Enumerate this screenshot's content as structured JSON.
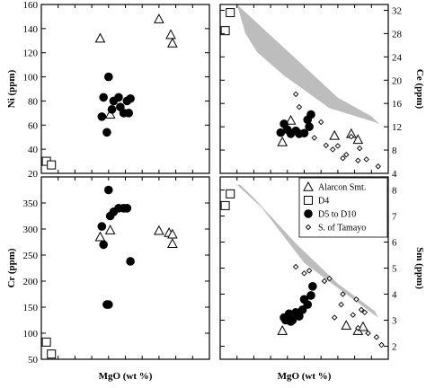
{
  "chart_data": [
    {
      "panel": "ni",
      "type": "scatter",
      "ylabel": "Ni (ppm)",
      "xlabel": "",
      "xlim": [
        0,
        10
      ],
      "ylim": [
        20,
        160
      ],
      "yticks": [
        20,
        40,
        60,
        80,
        100,
        120,
        140,
        160
      ],
      "y_axis_side": "left",
      "series": [
        {
          "marker": "triangle",
          "points": [
            [
              3.5,
              132
            ],
            [
              7.0,
              148
            ],
            [
              7.7,
              135
            ],
            [
              7.8,
              128
            ],
            [
              4.1,
              69
            ]
          ]
        },
        {
          "marker": "square",
          "points": [
            [
              0.3,
              30
            ],
            [
              0.6,
              27
            ]
          ]
        },
        {
          "marker": "circle",
          "points": [
            [
              3.6,
              67
            ],
            [
              3.7,
              83
            ],
            [
              3.9,
              54
            ],
            [
              4.0,
              100
            ],
            [
              4.2,
              73
            ],
            [
              4.3,
              80
            ],
            [
              4.6,
              83
            ],
            [
              4.7,
              75
            ],
            [
              4.9,
              70
            ],
            [
              5.1,
              80
            ],
            [
              5.2,
              70
            ],
            [
              5.3,
              82
            ]
          ]
        }
      ]
    },
    {
      "panel": "ce",
      "type": "scatter",
      "ylabel": "Ce (ppm)",
      "xlabel": "",
      "xlim": [
        0,
        10
      ],
      "ylim": [
        4,
        33
      ],
      "yticks": [
        4,
        8,
        12,
        16,
        20,
        24,
        28,
        32
      ],
      "y_axis_side": "right",
      "shaded_field": [
        [
          1.0,
          33
        ],
        [
          4.2,
          24.5
        ],
        [
          7.0,
          17
        ],
        [
          9.0,
          13.8
        ],
        [
          9.5,
          12.4
        ],
        [
          9.2,
          12.8
        ],
        [
          6.5,
          15.2
        ],
        [
          3.8,
          20.8
        ],
        [
          2.2,
          24.8
        ],
        [
          1.5,
          28
        ]
      ],
      "series": [
        {
          "marker": "triangle",
          "points": [
            [
              4.2,
              13.1
            ],
            [
              6.8,
              10.5
            ],
            [
              7.8,
              10.8
            ],
            [
              8.2,
              9.8
            ],
            [
              3.7,
              9.4
            ]
          ]
        },
        {
          "marker": "square",
          "points": [
            [
              0.3,
              28.5
            ],
            [
              0.6,
              31.6
            ]
          ]
        },
        {
          "marker": "circle",
          "points": [
            [
              3.6,
              11.0
            ],
            [
              3.8,
              12.5
            ],
            [
              4.0,
              11.5
            ],
            [
              4.2,
              10.8
            ],
            [
              4.5,
              11.3
            ],
            [
              4.7,
              10.8
            ],
            [
              5.0,
              10.9
            ],
            [
              5.2,
              13.2
            ],
            [
              5.3,
              12.0
            ],
            [
              5.4,
              14.1
            ]
          ]
        },
        {
          "marker": "diamond",
          "points": [
            [
              4.5,
              17.6
            ],
            [
              4.7,
              15.4
            ],
            [
              5.6,
              10.1
            ],
            [
              6.0,
              12.8
            ],
            [
              6.3,
              8.8
            ],
            [
              6.7,
              8.1
            ],
            [
              7.0,
              8.7
            ],
            [
              7.3,
              6.6
            ],
            [
              7.5,
              7.2
            ],
            [
              7.8,
              10.3
            ],
            [
              8.2,
              6.2
            ],
            [
              8.3,
              8.3
            ],
            [
              8.7,
              6.4
            ],
            [
              9.4,
              5.2
            ]
          ]
        }
      ]
    },
    {
      "panel": "cr",
      "type": "scatter",
      "ylabel": "Cr (ppm)",
      "xlabel": "MgO (wt %)",
      "xlim": [
        0,
        10
      ],
      "ylim": [
        50,
        400
      ],
      "yticks": [
        50,
        100,
        150,
        200,
        250,
        300,
        350
      ],
      "y_axis_side": "left",
      "series": [
        {
          "marker": "triangle",
          "points": [
            [
              3.5,
              285
            ],
            [
              4.1,
              298
            ],
            [
              7.0,
              297
            ],
            [
              7.6,
              293
            ],
            [
              7.8,
              290
            ],
            [
              7.8,
              272
            ]
          ]
        },
        {
          "marker": "square",
          "points": [
            [
              0.3,
              83
            ],
            [
              0.6,
              60
            ]
          ]
        },
        {
          "marker": "circle",
          "points": [
            [
              3.6,
              305
            ],
            [
              3.7,
              270
            ],
            [
              4.0,
              155
            ],
            [
              4.0,
              375
            ],
            [
              4.1,
              325
            ],
            [
              4.3,
              333
            ],
            [
              4.6,
              340
            ],
            [
              4.9,
              340
            ],
            [
              5.1,
              340
            ],
            [
              5.3,
              238
            ],
            [
              3.9,
              155
            ]
          ]
        }
      ]
    },
    {
      "panel": "sm",
      "type": "scatter",
      "ylabel": "Sm (ppm)",
      "xlabel": "MgO (wt %)",
      "xlim": [
        0,
        10
      ],
      "ylim": [
        1.5,
        8.5
      ],
      "yticks": [
        2,
        3,
        4,
        5,
        6,
        7,
        8
      ],
      "y_axis_side": "right",
      "legend_position": "top-right",
      "legend": [
        {
          "marker": "triangle",
          "label": "Alarcon Smt."
        },
        {
          "marker": "square",
          "label": "D4"
        },
        {
          "marker": "circle",
          "label": "D5 to D10"
        },
        {
          "marker": "diamond",
          "label": "S. of Tamayo"
        }
      ],
      "shaded_field": [
        [
          1.0,
          8.2
        ],
        [
          2.5,
          7.3
        ],
        [
          5.0,
          5.2
        ],
        [
          7.5,
          4.0
        ],
        [
          9.4,
          3.1
        ],
        [
          9.2,
          3.35
        ],
        [
          7.0,
          4.4
        ],
        [
          4.5,
          5.95
        ],
        [
          2.0,
          7.7
        ],
        [
          1.2,
          8.2
        ]
      ],
      "series": [
        {
          "marker": "triangle",
          "points": [
            [
              3.7,
              2.6
            ],
            [
              4.2,
              3.2
            ],
            [
              7.5,
              2.8
            ],
            [
              8.2,
              2.6
            ],
            [
              8.5,
              2.75
            ]
          ]
        },
        {
          "marker": "square",
          "points": [
            [
              0.3,
              7.4
            ],
            [
              0.6,
              7.85
            ]
          ]
        },
        {
          "marker": "circle",
          "points": [
            [
              3.8,
              3.1
            ],
            [
              3.9,
              3.0
            ],
            [
              4.1,
              3.25
            ],
            [
              4.2,
              2.95
            ],
            [
              4.3,
              3.0
            ],
            [
              4.5,
              3.3
            ],
            [
              4.7,
              3.15
            ],
            [
              4.9,
              3.4
            ],
            [
              5.0,
              3.8
            ],
            [
              5.2,
              3.6
            ],
            [
              5.4,
              3.95
            ],
            [
              5.5,
              4.3
            ]
          ]
        },
        {
          "marker": "diamond",
          "points": [
            [
              4.5,
              5.05
            ],
            [
              5.0,
              4.8
            ],
            [
              5.3,
              4.9
            ],
            [
              6.2,
              4.5
            ],
            [
              6.5,
              4.6
            ],
            [
              6.8,
              3.1
            ],
            [
              7.2,
              3.6
            ],
            [
              7.3,
              4.0
            ],
            [
              7.9,
              3.2
            ],
            [
              8.1,
              3.8
            ],
            [
              8.2,
              2.7
            ],
            [
              8.4,
              3.4
            ],
            [
              8.6,
              3.3
            ],
            [
              8.8,
              2.5
            ],
            [
              9.3,
              2.35
            ],
            [
              9.6,
              2.05
            ]
          ]
        }
      ]
    }
  ]
}
